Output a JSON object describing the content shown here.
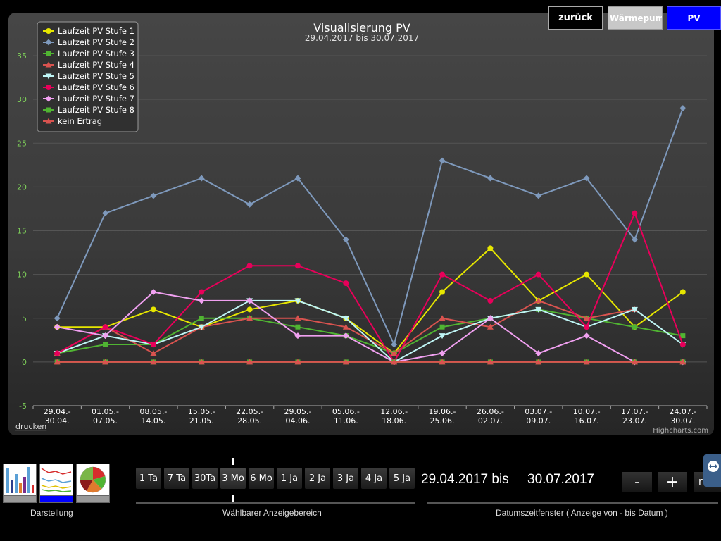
{
  "nav": {
    "back": "zurück",
    "heatpump": "Wärmepumpe",
    "pv": "PV"
  },
  "chart_data": {
    "type": "line",
    "title": "Visualisierung PV",
    "subtitle": "29.04.2017 bis 30.07.2017",
    "categories": [
      [
        "29.04.-",
        "30.04."
      ],
      [
        "01.05.-",
        "07.05."
      ],
      [
        "08.05.-",
        "14.05."
      ],
      [
        "15.05.-",
        "21.05."
      ],
      [
        "22.05.-",
        "28.05."
      ],
      [
        "29.05.-",
        "04.06."
      ],
      [
        "05.06.-",
        "11.06."
      ],
      [
        "12.06.-",
        "18.06."
      ],
      [
        "19.06.-",
        "25.06."
      ],
      [
        "26.06.-",
        "02.07."
      ],
      [
        "03.07.-",
        "09.07."
      ],
      [
        "10.07.-",
        "16.07."
      ],
      [
        "17.07.-",
        "23.07."
      ],
      [
        "24.07.-",
        "30.07."
      ]
    ],
    "ylim": [
      -5,
      37.5
    ],
    "yticks": [
      -5,
      0,
      5,
      10,
      15,
      20,
      25,
      30,
      35
    ],
    "grid": true,
    "legend_position": "top-left",
    "series": [
      {
        "name": "Laufzeit PV Stufe 1",
        "color": "#e6e600",
        "marker": "circle",
        "values": [
          4,
          4,
          6,
          4,
          6,
          7,
          5,
          1,
          8,
          13,
          7,
          10,
          4,
          8
        ]
      },
      {
        "name": "Laufzeit PV Stufe 2",
        "color": "#7e99bc",
        "marker": "diamond",
        "values": [
          5,
          17,
          19,
          21,
          18,
          21,
          14,
          2,
          23,
          21,
          19,
          21,
          14,
          29
        ]
      },
      {
        "name": "Laufzeit PV Stufe 3",
        "color": "#50b432",
        "marker": "square",
        "values": [
          1,
          2,
          2,
          5,
          5,
          4,
          3,
          1,
          4,
          5,
          6,
          5,
          4,
          3
        ]
      },
      {
        "name": "Laufzeit PV Stufe 4",
        "color": "#d9534f",
        "marker": "triangle",
        "values": [
          1,
          4,
          1,
          4,
          5,
          5,
          4,
          1,
          5,
          4,
          7,
          5,
          6,
          null
        ]
      },
      {
        "name": "Laufzeit PV Stufe 5",
        "color": "#bff5f5",
        "marker": "triangle-down",
        "values": [
          1,
          3,
          2,
          4,
          7,
          7,
          5,
          0,
          3,
          5,
          6,
          4,
          6,
          2
        ]
      },
      {
        "name": "Laufzeit PV Stufe 6",
        "color": "#e8005a",
        "marker": "circle",
        "values": [
          1,
          4,
          2,
          8,
          11,
          11,
          9,
          0,
          10,
          7,
          10,
          4,
          17,
          2
        ]
      },
      {
        "name": "Laufzeit PV Stufe 7",
        "color": "#f0a0f0",
        "marker": "diamond",
        "values": [
          4,
          3,
          8,
          7,
          7,
          3,
          3,
          0,
          1,
          5,
          1,
          3,
          0,
          0
        ]
      },
      {
        "name": "Laufzeit PV Stufe 8",
        "color": "#50b432",
        "marker": "square",
        "values": [
          0,
          0,
          0,
          0,
          0,
          0,
          0,
          0,
          0,
          0,
          0,
          0,
          0,
          0
        ]
      },
      {
        "name": "kein Ertrag",
        "color": "#d9534f",
        "marker": "triangle",
        "values": [
          0,
          0,
          0,
          0,
          0,
          0,
          0,
          0,
          0,
          0,
          0,
          0,
          0,
          0
        ]
      }
    ],
    "print_link": "drucken",
    "credits": "Highcharts.com"
  },
  "bottom": {
    "ranges": [
      "1 Ta",
      "7 Ta",
      "30Ta",
      "3 Mo",
      "6 Mo",
      "1 Ja",
      "2 Ja",
      "3 Ja",
      "4 Ja",
      "5 Ja"
    ],
    "selected_range": "3 Mo",
    "date_from": "29.04.2017 bis",
    "date_to": "30.07.2017",
    "minus": "-",
    "plus": "+",
    "reset_partial": "r",
    "caption_display": "Darstellung",
    "caption_range": "Wählbarer Anzeigebereich",
    "caption_window": "Datumszeitfenster   ( Anzeige von - bis Datum )",
    "thumb_bar_colors": [
      "#999999",
      "#0000ff",
      "#999999"
    ]
  }
}
